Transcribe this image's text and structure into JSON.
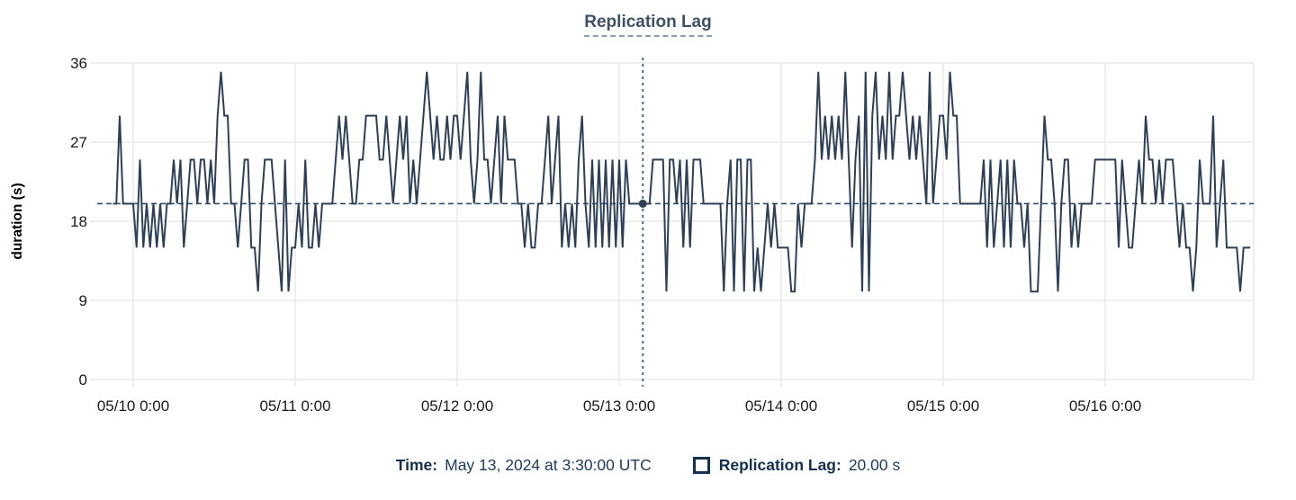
{
  "title": {
    "text": "Replication Lag"
  },
  "tooltip": {
    "time_label": "Time:",
    "time_value": "May 13, 2024 at 3:30:00 UTC",
    "series_label": "Replication Lag:",
    "series_value": "20.00 s"
  },
  "colors": {
    "line": "#2d4057",
    "grid": "#e9e9e9",
    "tick_text": "#1a1a1a",
    "axis_label_text": "#000000",
    "title_text": "#3d5269",
    "title_underline": "#8b9cb3",
    "crosshair_vertical": "#4a6d80",
    "reference_dash": "#30506e",
    "marker": "#2d4057",
    "legend_text": "#16304f"
  },
  "chart_data": {
    "type": "line",
    "title": "Replication Lag",
    "xlabel": "",
    "ylabel": "duration (s)",
    "ylim": [
      0,
      36
    ],
    "y_ticks": [
      0,
      9,
      18,
      27,
      36
    ],
    "x_tick_labels": [
      "05/10 0:00",
      "05/11 0:00",
      "05/12 0:00",
      "05/13 0:00",
      "05/14 0:00",
      "05/15 0:00",
      "05/16 0:00"
    ],
    "grid": true,
    "legend_position": "bottom",
    "crosshair": {
      "time": "2024-05-13T03:30:00Z",
      "value": 20.0,
      "display_time": "May 13, 2024 at 3:30:00 UTC",
      "display_value": "20.00 s"
    },
    "reference_value": 20,
    "series": [
      {
        "name": "Replication Lag",
        "unit": "s",
        "start": "2024-05-09T21:00:00Z",
        "interval_minutes": 30,
        "values": [
          20,
          20,
          30,
          20,
          20,
          20,
          20,
          15,
          25,
          15,
          20,
          15,
          20,
          15,
          20,
          15,
          20,
          20,
          25,
          20,
          25,
          15,
          20,
          25,
          25,
          20,
          25,
          25,
          20,
          25,
          20,
          30,
          35,
          30,
          30,
          20,
          20,
          15,
          20,
          25,
          25,
          15,
          15,
          10,
          20,
          25,
          25,
          25,
          20,
          15,
          10,
          25,
          10,
          15,
          15,
          20,
          15,
          25,
          15,
          15,
          20,
          15,
          20,
          20,
          20,
          20,
          25,
          30,
          25,
          30,
          25,
          20,
          20,
          25,
          25,
          30,
          30,
          30,
          30,
          25,
          25,
          30,
          25,
          20,
          25,
          30,
          25,
          30,
          20,
          25,
          20,
          25,
          30,
          35,
          30,
          25,
          30,
          25,
          25,
          30,
          25,
          30,
          30,
          25,
          30,
          35,
          25,
          20,
          25,
          35,
          25,
          25,
          20,
          25,
          30,
          20,
          30,
          25,
          25,
          25,
          20,
          20,
          15,
          20,
          15,
          15,
          20,
          20,
          25,
          30,
          20,
          25,
          30,
          15,
          20,
          15,
          20,
          15,
          25,
          30,
          20,
          15,
          25,
          15,
          25,
          15,
          25,
          15,
          25,
          15,
          25,
          15,
          25,
          20,
          20,
          20,
          20,
          20,
          20,
          20,
          25,
          25,
          25,
          25,
          10,
          25,
          25,
          20,
          25,
          15,
          25,
          15,
          25,
          25,
          25,
          20,
          20,
          20,
          20,
          20,
          20,
          10,
          20,
          25,
          10,
          25,
          25,
          10,
          25,
          25,
          10,
          15,
          10,
          15,
          20,
          15,
          20,
          15,
          15,
          15,
          15,
          10,
          10,
          20,
          15,
          20,
          20,
          20,
          25,
          35,
          25,
          30,
          25,
          30,
          25,
          30,
          25,
          35,
          25,
          15,
          25,
          30,
          10,
          35,
          10,
          30,
          35,
          25,
          30,
          25,
          35,
          25,
          30,
          30,
          35,
          30,
          25,
          30,
          25,
          30,
          25,
          20,
          35,
          20,
          25,
          30,
          30,
          25,
          35,
          30,
          30,
          20,
          20,
          20,
          20,
          20,
          20,
          20,
          25,
          15,
          25,
          15,
          20,
          25,
          15,
          25,
          15,
          25,
          20,
          20,
          15,
          20,
          10,
          10,
          10,
          20,
          30,
          25,
          25,
          20,
          10,
          20,
          25,
          25,
          15,
          20,
          15,
          20,
          20,
          20,
          20,
          25,
          25,
          25,
          25,
          25,
          25,
          25,
          15,
          25,
          20,
          15,
          15,
          20,
          25,
          20,
          30,
          25,
          25,
          20,
          25,
          20,
          25,
          25,
          25,
          20,
          15,
          20,
          15,
          15,
          10,
          15,
          25,
          20,
          20,
          20,
          30,
          15,
          20,
          25,
          15,
          15,
          15,
          15,
          10,
          15,
          15,
          15
        ]
      }
    ]
  }
}
